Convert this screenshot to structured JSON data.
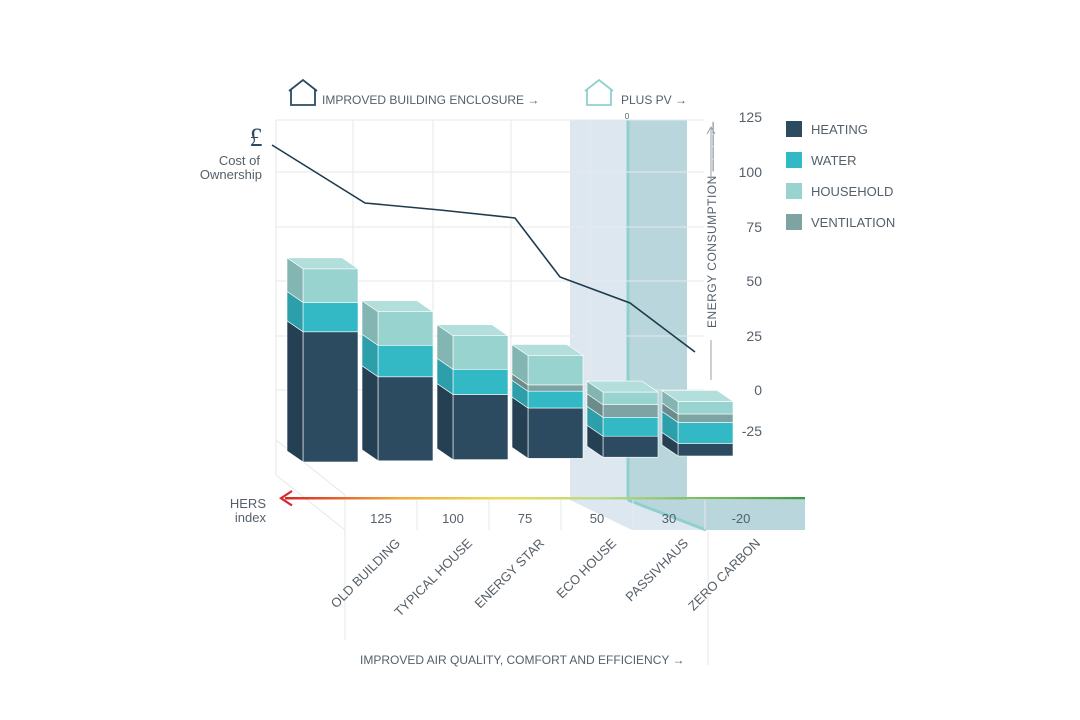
{
  "header": {
    "enclosure_label": "IMPROVED BUILDING ENCLOSURE →",
    "pv_label": "PLUS PV →",
    "pv_marker": "0",
    "house_icon": "house-outline-icon"
  },
  "cost": {
    "symbol": "£",
    "line1": "Cost of",
    "line2": "Ownership"
  },
  "hers": {
    "line1": "HERS",
    "line2": "index",
    "arrow_icon": "arrow-left-icon"
  },
  "footer_label": "IMPROVED AIR QUALITY, COMFORT AND EFFICIENCY →",
  "colors": {
    "HEATING": "#2c4a60",
    "WATER": "#33b9c6",
    "HOUSEHOLD": "#98d3d0",
    "VENTILATION": "#7ea3a3",
    "cost_line": "#1e3a4c",
    "passivhaus_band": "#dde7f0",
    "zero_carbon_band": "#b9d6dc"
  },
  "chart_data": {
    "type": "bar",
    "stacked": true,
    "categories": [
      "OLD BUILDING",
      "TYPICAL HOUSE",
      "ENERGY STAR",
      "ECO HOUSE",
      "PASSIVHAUS",
      "ZERO CARBON"
    ],
    "hers_index": [
      "125",
      "100",
      "75",
      "50",
      "30",
      "-20"
    ],
    "ylabel": "ENERGY CONSUMPTION ————",
    "ylim": [
      -25,
      125
    ],
    "yticks": [
      125,
      100,
      75,
      50,
      25,
      0,
      -25
    ],
    "legend": [
      "HEATING",
      "WATER",
      "HOUSEHOLD",
      "VENTILATION"
    ],
    "legend_position": "top-right",
    "series": [
      {
        "name": "HEATING",
        "values": [
          62,
          40,
          31,
          24,
          10,
          6
        ]
      },
      {
        "name": "WATER",
        "values": [
          14,
          15,
          12,
          8,
          9,
          10
        ]
      },
      {
        "name": "HOUSEHOLD",
        "values": [
          16,
          16,
          16,
          14,
          6,
          6
        ]
      },
      {
        "name": "VENTILATION",
        "values": [
          0,
          0,
          0,
          3,
          6,
          4
        ]
      }
    ],
    "cost_of_ownership": [
      84,
      76,
      72,
      44,
      34,
      14
    ],
    "cost_ylim": [
      0,
      125
    ],
    "grid": true
  }
}
